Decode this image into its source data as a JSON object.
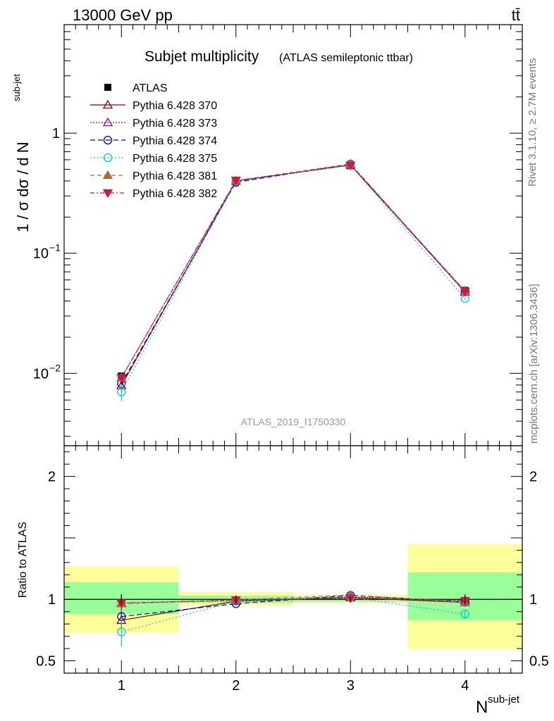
{
  "header": {
    "left": "13000 GeV pp",
    "right": "tt̄"
  },
  "side": {
    "rivet": "Rivet 3.1.10, ≥ 2.7M events",
    "mcplots": "mcplots.cern.ch [arXiv:1306.3436]"
  },
  "chart_data": [
    {
      "type": "line",
      "title": "Subjet multiplicity",
      "subtitle": "(ATLAS semileptonic ttbar)",
      "analysis_label": "ATLAS_2019_I1750330",
      "xlabel_base": "N",
      "xlabel_sup": "sub-jet",
      "ylabel_parts": [
        "1 / σ dσ / d N",
        "sub-jet"
      ],
      "yscale": "log",
      "ylim": [
        0.0025,
        8
      ],
      "xlim": [
        0.5,
        4.5
      ],
      "legend_position": "top-left",
      "x": [
        1,
        2,
        3,
        4
      ],
      "y_ticks": [
        {
          "value": 0.01,
          "base": "10",
          "exp": "−2"
        },
        {
          "value": 0.1,
          "base": "10",
          "exp": "−1"
        },
        {
          "value": 1,
          "base": "1",
          "exp": ""
        }
      ],
      "series": [
        {
          "name": "ATLAS",
          "color": "#000000",
          "marker": "square",
          "dash": "none",
          "values": [
            0.0095,
            0.405,
            0.535,
            0.049
          ],
          "errors": [
            0.0004,
            0.012,
            0.01,
            0.002
          ]
        },
        {
          "name": "Pythia 6.428 370",
          "color": "#8b0000",
          "marker": "triangle-open",
          "dash": "solid",
          "values": [
            0.0079,
            0.399,
            0.542,
            0.0475
          ],
          "errors": [
            0.0006,
            0.003,
            0.004,
            0.001
          ]
        },
        {
          "name": "Pythia 6.428 373",
          "color": "#9400d3",
          "marker": "triangle-open",
          "dash": "2,2",
          "values": [
            0.0092,
            0.4,
            0.545,
            0.0485
          ],
          "errors": [
            0.0006,
            0.003,
            0.004,
            0.001
          ]
        },
        {
          "name": "Pythia 6.428 374",
          "color": "#0000cd",
          "marker": "circle-open",
          "dash": "7,4",
          "values": [
            0.0082,
            0.39,
            0.552,
            0.0478
          ],
          "errors": [
            0.0006,
            0.003,
            0.004,
            0.001
          ]
        },
        {
          "name": "Pythia 6.428 375",
          "color": "#00ced1",
          "marker": "circle-open",
          "dash": "2,3",
          "values": [
            0.007,
            0.398,
            0.545,
            0.042
          ],
          "errors": [
            0.0011,
            0.003,
            0.004,
            0.001
          ]
        },
        {
          "name": "Pythia 6.428 381",
          "color": "#a0703c",
          "marker": "triangle-filled",
          "dash": "6,4",
          "values": [
            0.0092,
            0.402,
            0.555,
            0.0478
          ],
          "errors": [
            0.0006,
            0.003,
            0.004,
            0.001
          ]
        },
        {
          "name": "Pythia 6.428 382",
          "color": "#dc143c",
          "marker": "triangle-down-filled",
          "dash": "6,3,2,3",
          "values": [
            0.0092,
            0.404,
            0.54,
            0.0482
          ],
          "errors": [
            0.0006,
            0.003,
            0.004,
            0.001
          ]
        }
      ]
    },
    {
      "type": "line",
      "ylabel": "Ratio to ATLAS",
      "ylim": [
        0.4,
        2.25
      ],
      "xlim": [
        0.5,
        4.5
      ],
      "x": [
        1,
        2,
        3,
        4
      ],
      "x_ticks": [
        "1",
        "2",
        "3",
        "4"
      ],
      "y_ticks": [
        {
          "value": 0.5,
          "label": "0.5"
        },
        {
          "value": 1,
          "label": "1"
        },
        {
          "value": 2,
          "label": "2"
        }
      ],
      "bands": [
        {
          "x0": 0.5,
          "x1": 1.5,
          "green": [
            0.88,
            1.14
          ],
          "yellow": [
            0.73,
            1.27
          ]
        },
        {
          "x0": 1.5,
          "x1": 2.5,
          "green": [
            0.97,
            1.03
          ],
          "yellow": [
            0.95,
            1.06
          ]
        },
        {
          "x0": 2.5,
          "x1": 3.5,
          "green": [
            0.98,
            1.02
          ],
          "yellow": [
            0.97,
            1.04
          ]
        },
        {
          "x0": 3.5,
          "x1": 4.5,
          "green": [
            0.83,
            1.22
          ],
          "yellow": [
            0.6,
            1.45
          ]
        }
      ],
      "series": [
        {
          "name": "Pythia 6.428 370",
          "values": [
            0.83,
            0.985,
            1.015,
            0.975
          ],
          "errors": [
            0.06,
            0.01,
            0.01,
            0.02
          ]
        },
        {
          "name": "Pythia 6.428 373",
          "values": [
            0.97,
            0.99,
            1.02,
            0.99
          ],
          "errors": [
            0.06,
            0.01,
            0.01,
            0.02
          ]
        },
        {
          "name": "Pythia 6.428 374",
          "values": [
            0.86,
            0.965,
            1.032,
            0.978
          ],
          "errors": [
            0.06,
            0.01,
            0.01,
            0.02
          ]
        },
        {
          "name": "Pythia 6.428 375",
          "values": [
            0.735,
            0.985,
            1.018,
            0.88
          ],
          "errors": [
            0.12,
            0.01,
            0.01,
            0.03
          ]
        },
        {
          "name": "Pythia 6.428 381",
          "values": [
            0.965,
            0.995,
            1.035,
            0.975
          ],
          "errors": [
            0.07,
            0.01,
            0.01,
            0.02
          ]
        },
        {
          "name": "Pythia 6.428 382",
          "values": [
            0.97,
            0.995,
            1.01,
            0.99
          ],
          "errors": [
            0.06,
            0.01,
            0.01,
            0.02
          ]
        }
      ]
    }
  ]
}
